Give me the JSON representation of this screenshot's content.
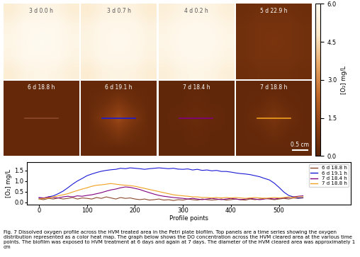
{
  "heat_maps": {
    "colorbar": {
      "label": "[O₂] mg/L",
      "range": [
        0,
        6
      ],
      "ticks": [
        {
          "value": 0,
          "label": "0.0"
        },
        {
          "value": 1.5,
          "label": "1.5"
        },
        {
          "value": 3,
          "label": "3.0"
        },
        {
          "value": 4.5,
          "label": "4.5"
        },
        {
          "value": 6,
          "label": "6.0"
        }
      ]
    },
    "scale_bar": "0.5 cm",
    "panels": [
      {
        "label": "3 d 0.0 h",
        "cells": [
          [
            5.2,
            5.6,
            5.7,
            5.6,
            5.2
          ],
          [
            5.6,
            5.9,
            5.9,
            5.9,
            5.6
          ],
          [
            5.7,
            5.9,
            6.0,
            5.9,
            5.7
          ],
          [
            5.6,
            5.9,
            5.9,
            5.9,
            5.6
          ],
          [
            5.2,
            5.6,
            5.7,
            5.6,
            5.3
          ]
        ]
      },
      {
        "label": "3 d 0.7 h",
        "cells": [
          [
            5.1,
            5.5,
            5.6,
            5.5,
            5.1
          ],
          [
            5.5,
            5.8,
            5.8,
            5.8,
            5.5
          ],
          [
            5.6,
            5.8,
            5.9,
            5.8,
            5.6
          ],
          [
            5.5,
            5.8,
            5.8,
            5.8,
            5.5
          ],
          [
            5.1,
            5.5,
            5.6,
            5.5,
            5.2
          ]
        ]
      },
      {
        "label": "4 d 0.2 h",
        "cells": [
          [
            5.3,
            5.6,
            5.7,
            5.6,
            5.3
          ],
          [
            5.6,
            5.8,
            5.9,
            5.8,
            5.6
          ],
          [
            5.7,
            5.9,
            5.9,
            5.9,
            5.7
          ],
          [
            5.6,
            5.8,
            5.9,
            5.8,
            5.6
          ],
          [
            5.3,
            5.6,
            5.7,
            5.6,
            5.3
          ]
        ]
      },
      {
        "label": "5 d 22.9 h",
        "cells": [
          [
            0.5,
            0.6,
            0.6,
            0.6,
            0.5
          ],
          [
            0.6,
            0.7,
            0.7,
            0.7,
            0.6
          ],
          [
            0.6,
            0.7,
            0.8,
            0.7,
            0.6
          ],
          [
            0.6,
            0.7,
            0.7,
            0.7,
            0.6
          ],
          [
            0.5,
            0.6,
            0.6,
            0.6,
            0.5
          ]
        ]
      },
      {
        "label": "6 d 18.8 h",
        "cells": [
          [
            0.3,
            0.3,
            0.3,
            0.3,
            0.3
          ],
          [
            0.3,
            0.3,
            0.3,
            0.3,
            0.3
          ],
          [
            0.3,
            0.3,
            0.3,
            0.3,
            0.3
          ],
          [
            0.3,
            0.3,
            0.3,
            0.3,
            0.3
          ],
          [
            0.3,
            0.3,
            0.3,
            0.3,
            0.3
          ]
        ]
      },
      {
        "label": "6 d 19.1 h",
        "cells": [
          [
            0.3,
            0.3,
            0.3,
            0.3,
            0.3
          ],
          [
            0.3,
            0.5,
            0.9,
            0.5,
            0.3
          ],
          [
            0.3,
            0.9,
            1.6,
            0.9,
            0.3
          ],
          [
            0.3,
            0.5,
            0.9,
            0.5,
            0.3
          ],
          [
            0.3,
            0.3,
            0.3,
            0.3,
            0.3
          ]
        ]
      },
      {
        "label": "7 d 18.4 h",
        "cells": [
          [
            0.2,
            0.2,
            0.2,
            0.2,
            0.2
          ],
          [
            0.2,
            0.2,
            0.3,
            0.2,
            0.2
          ],
          [
            0.2,
            0.3,
            0.4,
            0.3,
            0.2
          ],
          [
            0.2,
            0.2,
            0.3,
            0.2,
            0.2
          ],
          [
            0.2,
            0.2,
            0.2,
            0.2,
            0.2
          ]
        ]
      },
      {
        "label": "7 d 18.8 h",
        "cells": [
          [
            0.25,
            0.25,
            0.25,
            0.25,
            0.25
          ],
          [
            0.25,
            0.3,
            0.5,
            0.3,
            0.25
          ],
          [
            0.25,
            0.5,
            0.8,
            0.5,
            0.25
          ],
          [
            0.25,
            0.3,
            0.5,
            0.3,
            0.25
          ],
          [
            0.25,
            0.25,
            0.25,
            0.25,
            0.25
          ]
        ]
      }
    ]
  },
  "chart_data": {
    "type": "line",
    "x_label": "Profile points",
    "y_label": "[O₂] mg/L",
    "x": [
      0,
      10,
      20,
      30,
      40,
      50,
      60,
      70,
      80,
      90,
      100,
      110,
      120,
      130,
      140,
      150,
      160,
      170,
      180,
      190,
      200,
      210,
      220,
      230,
      240,
      250,
      260,
      270,
      280,
      290,
      300,
      310,
      320,
      330,
      340,
      350,
      360,
      370,
      380,
      390,
      400,
      410,
      420,
      430,
      440,
      450,
      460,
      470,
      480,
      490,
      500,
      510,
      520,
      530,
      540,
      550
    ],
    "series": [
      {
        "name": "6 d 18.8 h",
        "color": "#8b4a2b",
        "values": [
          0.15,
          0.12,
          0.18,
          0.15,
          0.2,
          0.15,
          0.18,
          0.22,
          0.15,
          0.2,
          0.18,
          0.15,
          0.22,
          0.18,
          0.25,
          0.2,
          0.15,
          0.22,
          0.18,
          0.2,
          0.15,
          0.12,
          0.15,
          0.1,
          0.12,
          0.15,
          0.1,
          0.12,
          0.08,
          0.12,
          0.1,
          0.15,
          0.12,
          0.1,
          0.15,
          0.12,
          0.1,
          0.12,
          0.15,
          0.1,
          0.12,
          0.15,
          0.12,
          0.1,
          0.15,
          0.12,
          0.15,
          0.18,
          0.15,
          0.12,
          0.15,
          0.18,
          0.15,
          0.2,
          0.18,
          0.2
        ]
      },
      {
        "name": "6 d 19.1 h",
        "color": "#1a1ad6",
        "values": [
          0.2,
          0.18,
          0.25,
          0.3,
          0.4,
          0.52,
          0.68,
          0.85,
          1.0,
          1.12,
          1.25,
          1.33,
          1.4,
          1.46,
          1.5,
          1.53,
          1.55,
          1.6,
          1.58,
          1.62,
          1.6,
          1.58,
          1.55,
          1.58,
          1.6,
          1.62,
          1.6,
          1.58,
          1.6,
          1.56,
          1.55,
          1.57,
          1.52,
          1.55,
          1.5,
          1.52,
          1.48,
          1.5,
          1.45,
          1.45,
          1.42,
          1.38,
          1.35,
          1.33,
          1.3,
          1.25,
          1.2,
          1.12,
          1.05,
          0.9,
          0.7,
          0.48,
          0.32,
          0.25,
          0.2,
          0.22
        ]
      },
      {
        "name": "7 d 18.4 h",
        "color": "#800080",
        "values": [
          0.22,
          0.2,
          0.25,
          0.22,
          0.2,
          0.25,
          0.28,
          0.25,
          0.3,
          0.28,
          0.32,
          0.35,
          0.4,
          0.45,
          0.52,
          0.58,
          0.62,
          0.68,
          0.72,
          0.7,
          0.65,
          0.6,
          0.52,
          0.45,
          0.38,
          0.32,
          0.28,
          0.25,
          0.22,
          0.2,
          0.18,
          0.15,
          0.18,
          0.15,
          0.12,
          0.15,
          0.18,
          0.15,
          0.12,
          0.15,
          0.18,
          0.15,
          0.12,
          0.15,
          0.18,
          0.15,
          0.12,
          0.15,
          0.18,
          0.15,
          0.18,
          0.2,
          0.22,
          0.25,
          0.28,
          0.3
        ]
      },
      {
        "name": "7 d 18.8 h",
        "color": "#f0a020",
        "values": [
          0.15,
          0.18,
          0.2,
          0.25,
          0.3,
          0.35,
          0.4,
          0.48,
          0.55,
          0.62,
          0.68,
          0.75,
          0.8,
          0.82,
          0.85,
          0.88,
          0.85,
          0.82,
          0.8,
          0.78,
          0.75,
          0.7,
          0.65,
          0.6,
          0.55,
          0.5,
          0.45,
          0.4,
          0.35,
          0.32,
          0.3,
          0.28,
          0.25,
          0.25,
          0.22,
          0.22,
          0.2,
          0.22,
          0.2,
          0.22,
          0.2,
          0.22,
          0.2,
          0.18,
          0.2,
          0.22,
          0.2,
          0.18,
          0.2,
          0.22,
          0.2,
          0.22,
          0.25,
          0.22,
          0.25,
          0.25
        ]
      }
    ],
    "xlim": [
      -25,
      650
    ],
    "xticks": [
      0,
      100,
      200,
      300,
      400,
      500
    ],
    "ylim": [
      -0.1,
      1.9
    ],
    "yticks": [
      {
        "value": 0,
        "label": "0.0"
      },
      {
        "value": 0.5,
        "label": "0.5"
      },
      {
        "value": 1,
        "label": "1.0"
      },
      {
        "value": 1.5,
        "label": "1.5"
      }
    ],
    "legend": "upper right"
  },
  "caption": "Fig. 7 Dissolved oxygen profile across the HVM treated area in the Petri plate biofilm. Top panels are a time series showing the oxygen distribution represented as a color heat map. The graph below shows the DO concentration across the HVM cleared area at the various time points. The biofilm was exposed to HVM treatment at 6 days and again at 7 days. The diameter of the HVM cleared area was approximately 1 cm"
}
